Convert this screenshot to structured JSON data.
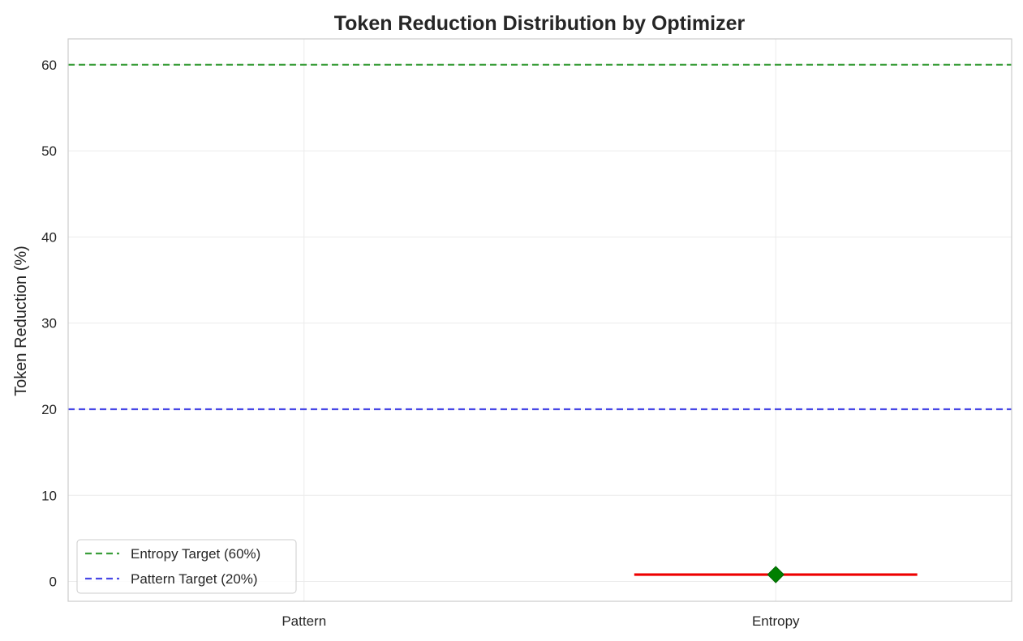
{
  "chart_data": {
    "type": "box",
    "title": "Token Reduction Distribution by Optimizer",
    "xlabel": "",
    "ylabel": "Token Reduction (%)",
    "categories": [
      "Pattern",
      "Entropy"
    ],
    "ylim": [
      -2.3,
      63
    ],
    "yticks": [
      0,
      10,
      20,
      30,
      40,
      50,
      60
    ],
    "grid": true,
    "series": [
      {
        "name": "Pattern",
        "median": null,
        "mean": null
      },
      {
        "name": "Entropy",
        "median": 0.8,
        "mean": 0.8
      }
    ],
    "reference_lines": [
      {
        "label": "Entropy Target (60%)",
        "value": 60,
        "color": "#3a9e3a"
      },
      {
        "label": "Pattern Target (20%)",
        "value": 20,
        "color": "#4747e6"
      }
    ],
    "legend_position": "lower-left",
    "colors": {
      "median": "#ee0000",
      "mean_marker": "#008000",
      "grid": "#ebebeb",
      "frame": "#cccccc"
    }
  }
}
